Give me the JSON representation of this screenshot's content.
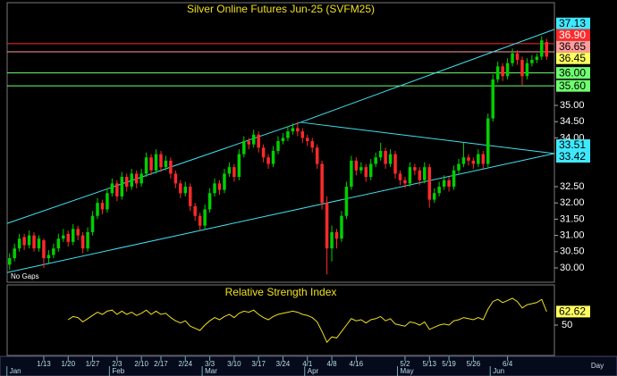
{
  "chart_data": {
    "type": "candlestick",
    "title": "Silver Online Futures Jun-25 (SVFM25)",
    "note": "No Gaps",
    "x_unit_label": "Day",
    "up_color": "#00d000",
    "down_color": "#ff2a2a",
    "trendline_color": "#40e0f0",
    "xlim": [
      -0.5,
      111.6
    ],
    "ylim": [
      29.56,
      38.16
    ],
    "yticks": [
      {
        "value": 30,
        "label": "30.00"
      },
      {
        "value": 30.5,
        "label": "30.50"
      },
      {
        "value": 31,
        "label": "31.00"
      },
      {
        "value": 31.5,
        "label": "31.50"
      },
      {
        "value": 32,
        "label": "32.00"
      },
      {
        "value": 32.5,
        "label": "32.50"
      },
      {
        "value": 34,
        "label": "34.00"
      },
      {
        "value": 34.5,
        "label": "34.50"
      },
      {
        "value": 35,
        "label": "35.00"
      }
    ],
    "xticks": [
      {
        "value": 7,
        "label": "1/13"
      },
      {
        "value": 12,
        "label": "1/20"
      },
      {
        "value": 17,
        "label": "1/27"
      },
      {
        "value": 22,
        "label": "2/3"
      },
      {
        "value": 27,
        "label": "2/10"
      },
      {
        "value": 31,
        "label": "2/17"
      },
      {
        "value": 36,
        "label": "2/24"
      },
      {
        "value": 41,
        "label": "3/3"
      },
      {
        "value": 46,
        "label": "3/10"
      },
      {
        "value": 51,
        "label": "3/17"
      },
      {
        "value": 56,
        "label": "3/24"
      },
      {
        "value": 61,
        "label": "4/1"
      },
      {
        "value": 66,
        "label": "4/8"
      },
      {
        "value": 71,
        "label": "4/16"
      },
      {
        "value": 81,
        "label": "5/2"
      },
      {
        "value": 86,
        "label": "5/13"
      },
      {
        "value": 90,
        "label": "5/19"
      },
      {
        "value": 95,
        "label": "5/26"
      },
      {
        "value": 102,
        "label": "6/4"
      }
    ],
    "month_ticks": [
      {
        "value": 0,
        "label": "Jan"
      },
      {
        "value": 21,
        "label": "Feb"
      },
      {
        "value": 40,
        "label": "Mar"
      },
      {
        "value": 61,
        "label": "Apr"
      },
      {
        "value": 80,
        "label": "May"
      },
      {
        "value": 99,
        "label": "Jun"
      }
    ],
    "levels": [
      {
        "value": 37.13,
        "label": "37.13",
        "color": "#40e8ff",
        "text_color": "#000",
        "line": false
      },
      {
        "value": 36.9,
        "label": "36.90",
        "color": "#ff2a2a",
        "text_color": "#fff",
        "line": true
      },
      {
        "value": 36.65,
        "label": "36.65",
        "color": "#ff9c9c",
        "text_color": "#000",
        "line": true
      },
      {
        "value": 36.45,
        "label": "36.45",
        "color": "#ffff60",
        "text_color": "#000",
        "line": false
      },
      {
        "value": 36,
        "label": "36.00",
        "color": "#70ff70",
        "text_color": "#000",
        "line": true
      },
      {
        "value": 35.6,
        "label": "35.60",
        "color": "#70ff70",
        "text_color": "#000",
        "line": true
      },
      {
        "value": 33.51,
        "label": "33.51",
        "color": "#40e8ff",
        "text_color": "#000",
        "line": false
      },
      {
        "value": 33.42,
        "label": "33.42",
        "color": "#40e8ff",
        "text_color": "#000",
        "line": false
      }
    ],
    "trendlines": [
      [
        -0.5,
        31.37,
        59.6,
        34.48
      ],
      [
        59.6,
        34.48,
        111.6,
        37.34
      ],
      [
        59.6,
        34.48,
        111.6,
        33.52
      ],
      [
        -0.5,
        29.86,
        111.6,
        33.52
      ]
    ],
    "ohlc": [
      [
        30.1,
        30.45,
        29.95,
        30.3
      ],
      [
        30.3,
        30.75,
        30.2,
        30.6
      ],
      [
        30.6,
        31.05,
        30.5,
        30.9
      ],
      [
        30.95,
        31.05,
        30.55,
        30.7
      ],
      [
        30.7,
        31.15,
        30.6,
        31.0
      ],
      [
        31.0,
        31.1,
        30.5,
        30.6
      ],
      [
        30.6,
        31.0,
        30.5,
        30.9
      ],
      [
        30.85,
        30.9,
        30.0,
        30.3
      ],
      [
        30.3,
        30.55,
        30.15,
        30.4
      ],
      [
        30.4,
        30.75,
        30.3,
        30.6
      ],
      [
        30.6,
        31.05,
        30.5,
        30.9
      ],
      [
        30.9,
        31.2,
        30.8,
        31.0
      ],
      [
        31.05,
        31.15,
        30.65,
        30.8
      ],
      [
        30.8,
        31.35,
        30.7,
        31.2
      ],
      [
        31.2,
        31.3,
        30.85,
        31.0
      ],
      [
        31.0,
        31.1,
        30.45,
        30.6
      ],
      [
        30.6,
        31.25,
        30.5,
        31.1
      ],
      [
        31.1,
        31.75,
        31.0,
        31.6
      ],
      [
        31.6,
        32.15,
        31.5,
        32.0
      ],
      [
        32.0,
        32.1,
        31.65,
        31.8
      ],
      [
        31.8,
        32.45,
        31.7,
        32.3
      ],
      [
        32.3,
        32.75,
        32.2,
        32.6
      ],
      [
        32.6,
        32.7,
        32.05,
        32.2
      ],
      [
        32.2,
        32.95,
        32.1,
        32.8
      ],
      [
        32.8,
        32.9,
        32.35,
        32.5
      ],
      [
        32.5,
        33.05,
        32.4,
        32.9
      ],
      [
        32.9,
        33.0,
        32.45,
        32.6
      ],
      [
        32.6,
        33.05,
        32.5,
        32.9
      ],
      [
        32.9,
        33.55,
        32.8,
        33.4
      ],
      [
        33.4,
        33.5,
        32.85,
        33.0
      ],
      [
        33.0,
        33.65,
        32.9,
        33.5
      ],
      [
        33.5,
        33.6,
        32.95,
        33.1
      ],
      [
        33.1,
        33.45,
        33.0,
        33.3
      ],
      [
        33.3,
        33.4,
        32.75,
        32.9
      ],
      [
        32.9,
        33.0,
        32.45,
        32.6
      ],
      [
        32.6,
        32.7,
        32.15,
        32.3
      ],
      [
        32.3,
        32.65,
        32.2,
        32.5
      ],
      [
        32.5,
        32.6,
        31.75,
        31.9
      ],
      [
        31.9,
        32.0,
        31.45,
        31.6
      ],
      [
        31.6,
        31.7,
        31.15,
        31.3
      ],
      [
        31.3,
        31.95,
        31.2,
        31.8
      ],
      [
        31.8,
        32.45,
        31.7,
        32.3
      ],
      [
        32.3,
        32.75,
        32.2,
        32.6
      ],
      [
        32.6,
        32.7,
        32.25,
        32.4
      ],
      [
        32.4,
        33.05,
        32.3,
        32.9
      ],
      [
        32.9,
        33.25,
        32.8,
        33.1
      ],
      [
        33.1,
        33.2,
        32.65,
        32.8
      ],
      [
        32.8,
        33.65,
        32.7,
        33.5
      ],
      [
        33.5,
        34.05,
        33.4,
        33.9
      ],
      [
        33.9,
        34.0,
        33.65,
        33.8
      ],
      [
        33.8,
        34.25,
        33.7,
        34.1
      ],
      [
        34.1,
        34.2,
        33.55,
        33.7
      ],
      [
        33.7,
        33.8,
        33.25,
        33.4
      ],
      [
        33.4,
        33.5,
        33.05,
        33.2
      ],
      [
        33.2,
        33.75,
        33.1,
        33.6
      ],
      [
        33.6,
        34.05,
        33.5,
        33.9
      ],
      [
        33.9,
        34.15,
        33.8,
        34.0
      ],
      [
        34.0,
        34.35,
        33.9,
        34.2
      ],
      [
        34.2,
        34.45,
        34.1,
        34.3
      ],
      [
        34.3,
        34.5,
        34.05,
        34.2
      ],
      [
        34.2,
        34.3,
        33.85,
        34.0
      ],
      [
        34.0,
        34.1,
        33.75,
        33.9
      ],
      [
        33.9,
        34.0,
        33.55,
        33.7
      ],
      [
        33.7,
        33.8,
        33.05,
        33.2
      ],
      [
        33.2,
        33.3,
        31.8,
        32.0
      ],
      [
        32.0,
        32.2,
        29.8,
        30.6
      ],
      [
        30.6,
        31.3,
        30.2,
        31.1
      ],
      [
        31.1,
        31.2,
        30.6,
        30.9
      ],
      [
        30.9,
        31.75,
        30.8,
        31.6
      ],
      [
        31.6,
        32.65,
        31.5,
        32.5
      ],
      [
        32.5,
        33.45,
        32.4,
        33.3
      ],
      [
        33.3,
        33.4,
        32.85,
        33.0
      ],
      [
        33.0,
        33.25,
        32.9,
        33.1
      ],
      [
        33.1,
        33.2,
        32.65,
        32.8
      ],
      [
        32.8,
        33.35,
        32.7,
        33.2
      ],
      [
        33.2,
        33.55,
        33.1,
        33.4
      ],
      [
        33.4,
        33.85,
        33.3,
        33.6
      ],
      [
        33.6,
        33.7,
        33.05,
        33.2
      ],
      [
        33.2,
        33.65,
        33.1,
        33.5
      ],
      [
        33.5,
        33.6,
        32.75,
        32.9
      ],
      [
        32.9,
        33.0,
        32.55,
        32.7
      ],
      [
        32.7,
        32.8,
        32.45,
        32.6
      ],
      [
        32.6,
        33.25,
        32.5,
        33.1
      ],
      [
        33.1,
        33.2,
        32.85,
        33.0
      ],
      [
        33.0,
        33.1,
        32.55,
        32.7
      ],
      [
        32.7,
        33.25,
        32.6,
        33.1
      ],
      [
        33.1,
        33.2,
        31.85,
        32.1
      ],
      [
        32.1,
        32.45,
        32.0,
        32.3
      ],
      [
        32.3,
        32.65,
        32.2,
        32.5
      ],
      [
        32.5,
        32.85,
        32.4,
        32.7
      ],
      [
        32.7,
        32.8,
        32.35,
        32.5
      ],
      [
        32.5,
        33.15,
        32.4,
        33.0
      ],
      [
        33.0,
        33.35,
        32.9,
        33.2
      ],
      [
        33.2,
        33.85,
        33.1,
        33.4
      ],
      [
        33.4,
        33.5,
        33.15,
        33.3
      ],
      [
        33.3,
        33.4,
        33.05,
        33.2
      ],
      [
        33.2,
        33.65,
        33.1,
        33.5
      ],
      [
        33.5,
        33.6,
        33.05,
        33.2
      ],
      [
        33.2,
        34.75,
        33.1,
        34.6
      ],
      [
        34.6,
        35.95,
        34.5,
        35.8
      ],
      [
        35.8,
        36.35,
        35.7,
        36.2
      ],
      [
        36.2,
        36.3,
        35.75,
        35.9
      ],
      [
        35.9,
        36.45,
        35.8,
        36.3
      ],
      [
        36.3,
        36.75,
        36.2,
        36.6
      ],
      [
        36.6,
        36.7,
        36.25,
        36.4
      ],
      [
        36.4,
        36.5,
        35.6,
        35.9
      ],
      [
        35.9,
        36.45,
        35.8,
        36.3
      ],
      [
        36.3,
        36.55,
        36.2,
        36.4
      ],
      [
        36.4,
        36.6,
        36.3,
        36.5
      ],
      [
        36.5,
        37.13,
        36.4,
        37.0
      ],
      [
        36.95,
        37.05,
        36.4,
        36.5
      ]
    ],
    "rsi": {
      "title": "Relative Strength Index",
      "color": "#f0e020",
      "ylim": [
        21.7,
        87.5
      ],
      "yticks": [
        50
      ],
      "values": [
        null,
        null,
        null,
        null,
        null,
        null,
        null,
        null,
        null,
        null,
        null,
        null,
        55,
        58,
        57,
        53,
        56,
        59,
        62,
        60,
        63,
        64,
        60,
        63,
        60,
        62,
        59,
        61,
        64,
        60,
        63,
        60,
        61,
        57,
        54,
        52,
        54,
        49,
        47,
        45,
        50,
        54,
        57,
        55,
        58,
        60,
        57,
        61,
        63,
        62,
        64,
        60,
        57,
        55,
        58,
        60,
        61,
        62,
        63,
        62,
        60,
        59,
        57,
        53,
        44,
        34,
        39,
        38,
        44,
        50,
        56,
        54,
        55,
        52,
        55,
        56,
        58,
        54,
        56,
        51,
        50,
        49,
        53,
        52,
        50,
        53,
        46,
        48,
        50,
        51,
        50,
        54,
        55,
        57,
        56,
        55,
        57,
        55,
        65,
        72,
        74,
        71,
        73,
        75,
        72,
        66,
        69,
        70,
        71,
        74,
        62.62
      ]
    }
  }
}
